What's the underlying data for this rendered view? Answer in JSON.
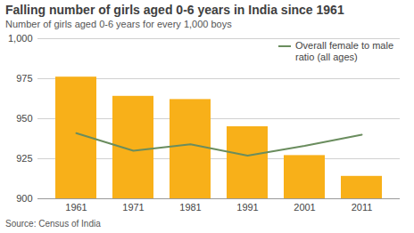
{
  "chart_data": {
    "type": "bar",
    "title": "Falling number of girls aged 0-6 years in India since 1961",
    "subtitle": "Number of girls aged 0-6 years for every 1,000 boys",
    "caption": "Source: Census of India",
    "categories": [
      "1961",
      "1971",
      "1981",
      "1991",
      "2001",
      "2011"
    ],
    "series": [
      {
        "type": "bar",
        "color": "#f8b019",
        "values": [
          976,
          964,
          962,
          945,
          927,
          914
        ]
      },
      {
        "name": "Overall female to male ratio (all ages)",
        "type": "line",
        "color": "#6a8d5e",
        "values": [
          941,
          930,
          934,
          927,
          933,
          940
        ]
      }
    ],
    "ylim": [
      900,
      1000
    ],
    "yticks": [
      900,
      925,
      950,
      975,
      {
        "value": 1000,
        "label": "1,000"
      }
    ],
    "grid": true,
    "legend": "top-right"
  }
}
